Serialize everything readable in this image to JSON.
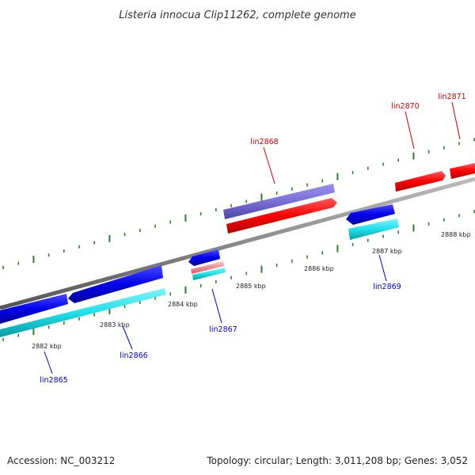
{
  "title": "Listeria innocua Clip11262, complete genome",
  "footer": {
    "accession": "Accession: NC_003212",
    "summary": "Topology: circular; Length: 3,011,208 bp; Genes: 3,052"
  },
  "colors": {
    "backbone": "#8a8a8a",
    "tick": "#2e7d32",
    "forward_gene": "#ff0000",
    "reverse_gene": "#0000ee",
    "forward_label": "#cc0000",
    "reverse_label": "#0000cc",
    "cds_forward": "#7a6fd8",
    "cds_reverse": "#1ee0ea",
    "rna": "#f4909a"
  },
  "scale": {
    "unit": "kbp",
    "tick_labels": [
      "2882 kbp",
      "2883 kbp",
      "2884 kbp",
      "2885 kbp",
      "2886 kbp",
      "2887 kbp",
      "2888 kbp"
    ]
  },
  "genes": [
    {
      "name": "lin2865",
      "strand": "reverse"
    },
    {
      "name": "lin2866",
      "strand": "reverse"
    },
    {
      "name": "lin2867",
      "strand": "reverse"
    },
    {
      "name": "lin2868",
      "strand": "forward"
    },
    {
      "name": "lin2869",
      "strand": "reverse"
    },
    {
      "name": "lin2870",
      "strand": "forward"
    },
    {
      "name": "lin2871",
      "strand": "forward"
    }
  ]
}
